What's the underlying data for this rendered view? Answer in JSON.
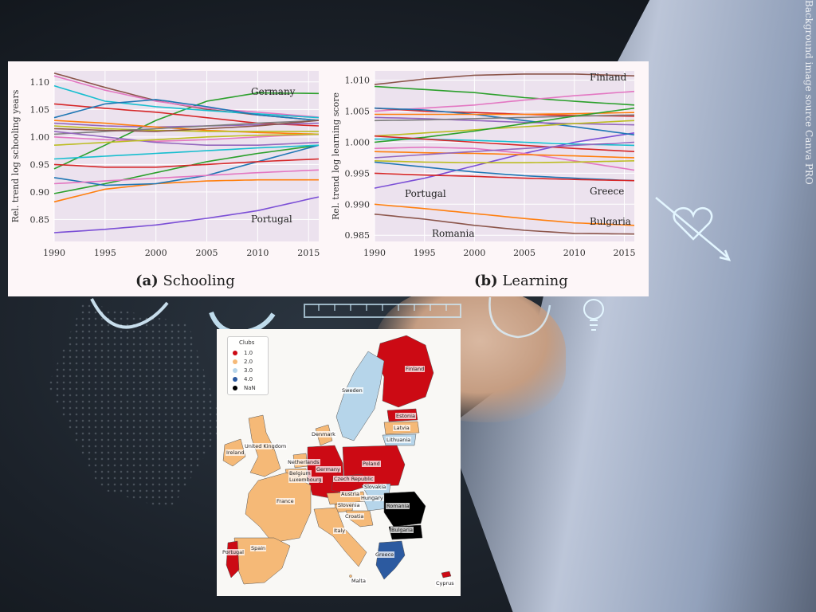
{
  "watermark": "Background image source Canva PRO",
  "figure": {
    "captions": [
      {
        "tag": "(a)",
        "text": "Schooling"
      },
      {
        "tag": "(b)",
        "text": "Learning"
      }
    ]
  },
  "chart_data": [
    {
      "type": "line",
      "title": "",
      "ylabel": "Rel. trend log schooling years",
      "xlabel": "",
      "xlim": [
        1990,
        2016
      ],
      "ylim": [
        0.81,
        1.12
      ],
      "x_ticks": [
        "1990",
        "1995",
        "2000",
        "2005",
        "2010",
        "2015"
      ],
      "y_ticks": [
        "0.85",
        "0.90",
        "0.95",
        "1.00",
        "1.05",
        "1.10"
      ],
      "annotations": [
        "Germany",
        "Portugal"
      ],
      "grid": true,
      "series": [
        {
          "name": "Germany",
          "color": "#2ca02c",
          "x": [
            1990,
            1995,
            2000,
            2005,
            2010,
            2016
          ],
          "values": [
            0.942,
            0.985,
            1.03,
            1.065,
            1.08,
            1.079
          ]
        },
        {
          "name": "Portugal",
          "color": "#7b4fd6",
          "x": [
            1990,
            1995,
            2000,
            2005,
            2010,
            2016
          ],
          "values": [
            0.826,
            0.832,
            0.84,
            0.852,
            0.866,
            0.891
          ]
        },
        {
          "color": "#8c564b",
          "x": [
            1990,
            1995,
            2000,
            2005,
            2010,
            2016
          ],
          "values": [
            1.116,
            1.09,
            1.066,
            1.05,
            1.04,
            1.03
          ]
        },
        {
          "color": "#e377c2",
          "x": [
            1990,
            1995,
            2000,
            2005,
            2010,
            2016
          ],
          "values": [
            1.111,
            1.085,
            1.065,
            1.052,
            1.045,
            1.036
          ]
        },
        {
          "color": "#17becf",
          "x": [
            1990,
            1995,
            2000,
            2005,
            2010,
            2016
          ],
          "values": [
            1.093,
            1.065,
            1.055,
            1.048,
            1.042,
            1.035
          ]
        },
        {
          "color": "#d62728",
          "x": [
            1990,
            1995,
            2000,
            2005,
            2010,
            2016
          ],
          "values": [
            1.06,
            1.052,
            1.045,
            1.035,
            1.025,
            1.02
          ]
        },
        {
          "color": "#1f77b4",
          "x": [
            1990,
            1995,
            2000,
            2005,
            2010,
            2016
          ],
          "values": [
            1.035,
            1.06,
            1.068,
            1.055,
            1.04,
            1.03
          ]
        },
        {
          "color": "#9467bd",
          "x": [
            1990,
            1995,
            2000,
            2005,
            2010,
            2016
          ],
          "values": [
            1.025,
            1.02,
            1.018,
            1.02,
            1.022,
            1.025
          ]
        },
        {
          "color": "#ff7f0e",
          "x": [
            1990,
            1995,
            2000,
            2005,
            2010,
            2016
          ],
          "values": [
            1.03,
            1.025,
            1.018,
            1.012,
            1.008,
            1.005
          ]
        },
        {
          "color": "#bcbd22",
          "x": [
            1990,
            1995,
            2000,
            2005,
            2010,
            2016
          ],
          "values": [
            1.02,
            1.015,
            1.012,
            1.01,
            1.01,
            1.01
          ]
        },
        {
          "color": "#7f7f7f",
          "x": [
            1990,
            1995,
            2000,
            2005,
            2010,
            2016
          ],
          "values": [
            1.005,
            1.01,
            1.015,
            1.02,
            1.025,
            1.03
          ]
        },
        {
          "color": "#e377c2",
          "x": [
            1990,
            1995,
            2000,
            2005,
            2010,
            2016
          ],
          "values": [
            1.0,
            0.995,
            0.992,
            0.995,
            1.0,
            1.005
          ]
        },
        {
          "color": "#ff7f0e",
          "x": [
            1990,
            1995,
            2000,
            2005,
            2010,
            2016
          ],
          "values": [
            0.882,
            0.905,
            0.915,
            0.92,
            0.922,
            0.922
          ]
        },
        {
          "color": "#2ca02c",
          "x": [
            1990,
            1995,
            2000,
            2005,
            2010,
            2016
          ],
          "values": [
            0.897,
            0.915,
            0.935,
            0.955,
            0.97,
            0.985
          ]
        },
        {
          "color": "#1f77b4",
          "x": [
            1990,
            1995,
            2000,
            2005,
            2010,
            2016
          ],
          "values": [
            0.926,
            0.912,
            0.915,
            0.93,
            0.955,
            0.985
          ]
        },
        {
          "color": "#e377c2",
          "x": [
            1990,
            1995,
            2000,
            2005,
            2010,
            2016
          ],
          "values": [
            0.915,
            0.92,
            0.925,
            0.93,
            0.935,
            0.94
          ]
        },
        {
          "color": "#d62728",
          "x": [
            1990,
            1995,
            2000,
            2005,
            2010,
            2016
          ],
          "values": [
            0.95,
            0.945,
            0.945,
            0.95,
            0.955,
            0.96
          ]
        },
        {
          "color": "#17becf",
          "x": [
            1990,
            1995,
            2000,
            2005,
            2010,
            2016
          ],
          "values": [
            0.96,
            0.965,
            0.97,
            0.975,
            0.98,
            0.985
          ]
        },
        {
          "color": "#9467bd",
          "x": [
            1990,
            1995,
            2000,
            2005,
            2010,
            2016
          ],
          "values": [
            1.01,
            1.0,
            0.99,
            0.985,
            0.985,
            0.99
          ]
        },
        {
          "color": "#bcbd22",
          "x": [
            1990,
            1995,
            2000,
            2005,
            2010,
            2016
          ],
          "values": [
            0.985,
            0.99,
            0.995,
            1.0,
            1.003,
            1.005
          ]
        },
        {
          "color": "#8c564b",
          "x": [
            1990,
            1995,
            2000,
            2005,
            2010,
            2016
          ],
          "values": [
            1.015,
            1.012,
            1.01,
            1.015,
            1.02,
            1.03
          ]
        }
      ]
    },
    {
      "type": "line",
      "title": "",
      "ylabel": "Rel. trend log learning score",
      "xlabel": "",
      "xlim": [
        1990,
        2016
      ],
      "ylim": [
        0.984,
        1.0115
      ],
      "x_ticks": [
        "1990",
        "1995",
        "2000",
        "2005",
        "2010",
        "2015"
      ],
      "y_ticks": [
        "0.985",
        "0.990",
        "0.995",
        "1.000",
        "1.005",
        "1.010"
      ],
      "annotations": [
        "Finland",
        "Portugal",
        "Greece",
        "Bulgaria",
        "Romania"
      ],
      "grid": true,
      "series": [
        {
          "name": "Finland",
          "color": "#8c564b",
          "x": [
            1990,
            1995,
            2000,
            2005,
            2010,
            2016
          ],
          "values": [
            1.0093,
            1.0102,
            1.0108,
            1.011,
            1.011,
            1.0107
          ]
        },
        {
          "name": "Portugal",
          "color": "#7b4fd6",
          "x": [
            1990,
            1995,
            2000,
            2005,
            2010,
            2016
          ],
          "values": [
            0.9926,
            0.9942,
            0.9962,
            0.9982,
            1.0,
            1.0015
          ]
        },
        {
          "name": "Greece",
          "color": "#1f77b4",
          "x": [
            1990,
            1995,
            2000,
            2005,
            2010,
            2016
          ],
          "values": [
            0.9968,
            0.996,
            0.9952,
            0.9946,
            0.9942,
            0.9938
          ]
        },
        {
          "name": "Bulgaria",
          "color": "#ff7f0e",
          "x": [
            1990,
            1995,
            2000,
            2005,
            2010,
            2016
          ],
          "values": [
            0.99,
            0.9893,
            0.9885,
            0.9877,
            0.987,
            0.9866
          ]
        },
        {
          "name": "Romania",
          "color": "#8c564b",
          "x": [
            1990,
            1995,
            2000,
            2005,
            2010,
            2016
          ],
          "values": [
            0.9884,
            0.9876,
            0.9866,
            0.9858,
            0.9853,
            0.9852
          ]
        },
        {
          "color": "#2ca02c",
          "x": [
            1990,
            1995,
            2000,
            2005,
            2010,
            2016
          ],
          "values": [
            1.009,
            1.0085,
            1.008,
            1.0072,
            1.0066,
            1.006
          ]
        },
        {
          "color": "#e377c2",
          "x": [
            1990,
            1995,
            2000,
            2005,
            2010,
            2016
          ],
          "values": [
            1.005,
            1.0055,
            1.006,
            1.0068,
            1.0075,
            1.0082
          ]
        },
        {
          "color": "#d62728",
          "x": [
            1990,
            1995,
            2000,
            2005,
            2010,
            2016
          ],
          "values": [
            1.0055,
            1.005,
            1.0048,
            1.0045,
            1.0043,
            1.0042
          ]
        },
        {
          "color": "#1f77b4",
          "x": [
            1990,
            1995,
            2000,
            2005,
            2010,
            2016
          ],
          "values": [
            1.0055,
            1.0052,
            1.0045,
            1.0035,
            1.0025,
            1.0012
          ]
        },
        {
          "color": "#ff7f0e",
          "x": [
            1990,
            1995,
            2000,
            2005,
            2010,
            2016
          ],
          "values": [
            1.0045,
            1.0045,
            1.0045,
            1.0045,
            1.0046,
            1.0048
          ]
        },
        {
          "color": "#9467bd",
          "x": [
            1990,
            1995,
            2000,
            2005,
            2010,
            2016
          ],
          "values": [
            1.004,
            1.0038,
            1.0035,
            1.0032,
            1.003,
            1.0028
          ]
        },
        {
          "color": "#7f7f7f",
          "x": [
            1990,
            1995,
            2000,
            2005,
            2010,
            2016
          ],
          "values": [
            1.0035,
            1.0036,
            1.0038,
            1.004,
            1.0042,
            1.0044
          ]
        },
        {
          "color": "#bcbd22",
          "x": [
            1990,
            1995,
            2000,
            2005,
            2010,
            2016
          ],
          "values": [
            1.001,
            1.0015,
            1.002,
            1.0025,
            1.003,
            1.0035
          ]
        },
        {
          "color": "#17becf",
          "x": [
            1990,
            1995,
            2000,
            2005,
            2010,
            2016
          ],
          "values": [
            1.0005,
            1.0005,
            1.0003,
            1.0,
            0.9997,
            0.9995
          ]
        },
        {
          "color": "#2ca02c",
          "x": [
            1990,
            1995,
            2000,
            2005,
            2010,
            2016
          ],
          "values": [
            1.0,
            1.0008,
            1.0018,
            1.003,
            1.0042,
            1.0055
          ]
        },
        {
          "color": "#d62728",
          "x": [
            1990,
            1995,
            2000,
            2005,
            2010,
            2016
          ],
          "values": [
            1.001,
            1.0005,
            1.0,
            0.9995,
            0.999,
            0.9985
          ]
        },
        {
          "color": "#e377c2",
          "x": [
            1990,
            1995,
            2000,
            2005,
            2010,
            2016
          ],
          "values": [
            0.999,
            0.9992,
            0.999,
            0.9982,
            0.997,
            0.9955
          ]
        },
        {
          "color": "#ff7f0e",
          "x": [
            1990,
            1995,
            2000,
            2005,
            2010,
            2016
          ],
          "values": [
            0.9985,
            0.9983,
            0.9982,
            0.998,
            0.9978,
            0.9975
          ]
        },
        {
          "color": "#9467bd",
          "x": [
            1990,
            1995,
            2000,
            2005,
            2010,
            2016
          ],
          "values": [
            0.9975,
            0.998,
            0.9985,
            0.999,
            0.9995,
            1.0
          ]
        },
        {
          "color": "#bcbd22",
          "x": [
            1990,
            1995,
            2000,
            2005,
            2010,
            2016
          ],
          "values": [
            0.997,
            0.9968,
            0.9967,
            0.9967,
            0.9968,
            0.997
          ]
        },
        {
          "color": "#d62728",
          "x": [
            1990,
            1995,
            2000,
            2005,
            2010,
            2016
          ],
          "values": [
            0.995,
            0.9947,
            0.9945,
            0.9942,
            0.994,
            0.9938
          ]
        }
      ]
    }
  ],
  "map": {
    "legend_title": "Clubs",
    "legend": [
      {
        "label": "1.0",
        "color": "#cc0a14"
      },
      {
        "label": "2.0",
        "color": "#f5b977"
      },
      {
        "label": "3.0",
        "color": "#b6d5ea"
      },
      {
        "label": "4.0",
        "color": "#2c5aa0"
      },
      {
        "label": "NaN",
        "color": "#000000"
      }
    ],
    "countries": [
      "Finland",
      "Sweden",
      "Estonia",
      "Latvia",
      "Lithuania",
      "Denmark",
      "Ireland",
      "United Kingdom",
      "Netherlands",
      "Germany",
      "Poland",
      "Belgium",
      "Luxembourg",
      "Czech Republic",
      "Slovakia",
      "France",
      "Austria",
      "Hungary",
      "Slovenia",
      "Romania",
      "Croatia",
      "Bulgaria",
      "Italy",
      "Portugal",
      "Spain",
      "Greece",
      "Malta",
      "Cyprus"
    ]
  }
}
